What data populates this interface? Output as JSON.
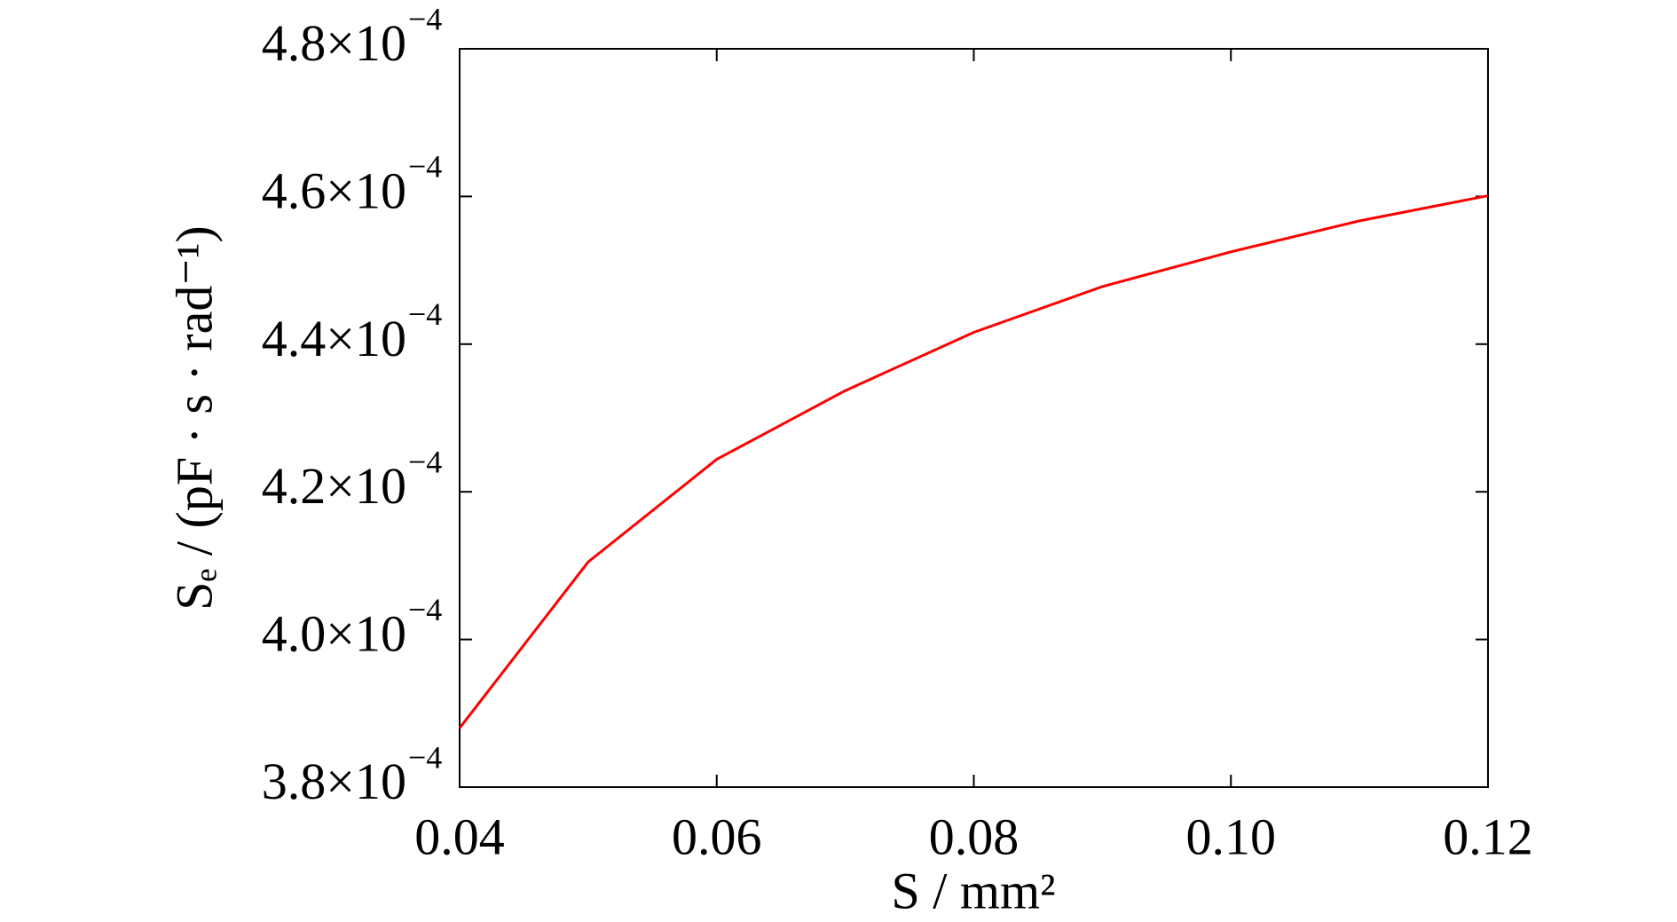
{
  "chart_data": {
    "type": "line",
    "x_label": "S / mm²",
    "y_label": "Sₑ / (pF · s · rad⁻¹)",
    "x": [
      0.04,
      0.05,
      0.06,
      0.07,
      0.08,
      0.09,
      0.1,
      0.11,
      0.12
    ],
    "series": [
      {
        "color": "#ff0000",
        "values": [
          0.000388,
          0.0004105,
          0.0004244,
          0.0004337,
          0.0004416,
          0.0004478,
          0.0004525,
          0.0004567,
          0.0004601
        ]
      }
    ],
    "xlim": [
      0.04,
      0.12
    ],
    "xticks": [
      0.04,
      0.06,
      0.08,
      {
        "value": 0.1,
        "label": "0.10"
      },
      0.12
    ],
    "ylim": [
      0.00038,
      0.00048
    ],
    "yticks": [
      {
        "value": 0.00038,
        "label": "3.8×10",
        "exponent": "−4"
      },
      {
        "value": 0.0004,
        "label": "4.0×10",
        "exponent": "−4"
      },
      {
        "value": 0.00042,
        "label": "4.2×10",
        "exponent": "−4"
      },
      {
        "value": 0.00044,
        "label": "4.4×10",
        "exponent": "−4"
      },
      {
        "value": 0.00046,
        "label": "4.6×10",
        "exponent": "−4"
      },
      {
        "value": 0.00048,
        "label": "4.8×10",
        "exponent": "−4"
      }
    ],
    "grid": false
  }
}
